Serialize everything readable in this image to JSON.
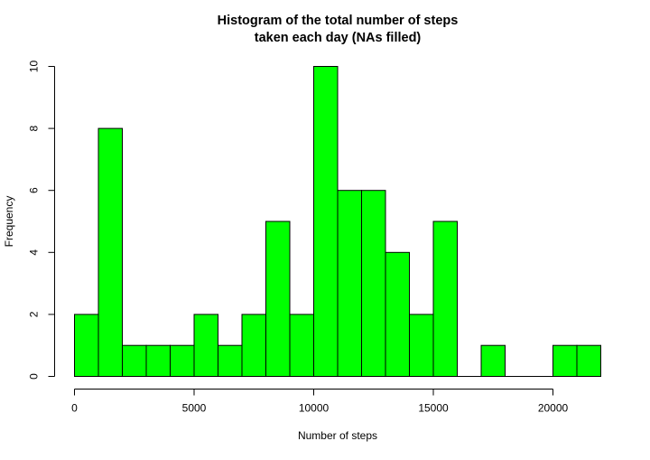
{
  "chart_data": {
    "type": "bar",
    "title_line1": "Histogram of the total number of steps",
    "title_line2": "taken each day (NAs filled)",
    "xlabel": "Number of steps",
    "ylabel": "Frequency",
    "bin_edges": [
      0,
      1000,
      2000,
      3000,
      4000,
      5000,
      6000,
      7000,
      8000,
      9000,
      10000,
      11000,
      12000,
      13000,
      14000,
      15000,
      16000,
      17000,
      18000,
      19000,
      20000,
      21000,
      22000
    ],
    "values": [
      2,
      8,
      1,
      1,
      1,
      2,
      1,
      2,
      5,
      2,
      10,
      6,
      6,
      4,
      2,
      5,
      0,
      1,
      0,
      0,
      1,
      1
    ],
    "xlim": [
      0,
      22000
    ],
    "ylim": [
      0,
      10
    ],
    "x_ticks": [
      0,
      5000,
      10000,
      15000,
      20000
    ],
    "y_ticks": [
      0,
      2,
      4,
      6,
      8,
      10
    ],
    "x_tick_labels": [
      "0",
      "5000",
      "10000",
      "15000",
      "20000"
    ],
    "y_tick_labels": [
      "0",
      "2",
      "4",
      "6",
      "8",
      "10"
    ],
    "bar_color": "#00ff00",
    "bar_edge_color": "#000000",
    "grid": false,
    "legend": "none"
  }
}
